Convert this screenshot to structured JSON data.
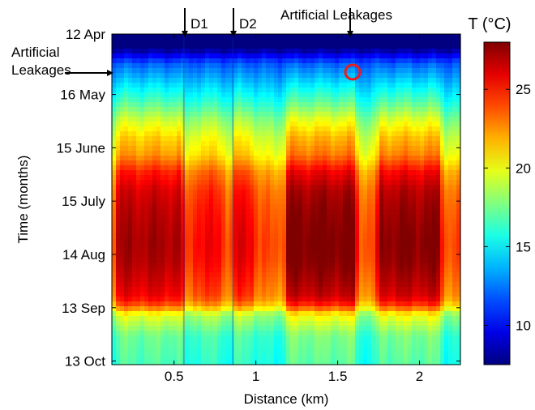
{
  "chart_data": {
    "type": "heatmap",
    "title": "",
    "xlabel": "Distance (km)",
    "ylabel": "Time (months)",
    "xlim": [
      0.12,
      2.25
    ],
    "xticks": [
      0.5,
      1,
      1.5,
      2
    ],
    "xtick_labels": [
      "0.5",
      "1",
      "1.5",
      "2"
    ],
    "yticks": [
      {
        "day": 0,
        "label": "12 Apr"
      },
      {
        "day": 34,
        "label": "16 May"
      },
      {
        "day": 64,
        "label": "15 June"
      },
      {
        "day": 94,
        "label": "15 July"
      },
      {
        "day": 124,
        "label": "14 Aug"
      },
      {
        "day": 154,
        "label": "13 Sep"
      },
      {
        "day": 184,
        "label": "13 Oct"
      }
    ],
    "ylim_days": [
      0,
      186
    ],
    "colorbar": {
      "label": "T (°C)",
      "range": [
        7.5,
        28
      ],
      "ticks": [
        10,
        15,
        20,
        25
      ],
      "tick_labels": [
        "10",
        "15",
        "20",
        "25"
      ]
    },
    "colormap": "jet",
    "grid": false,
    "annotations": [
      {
        "text": "D1",
        "x": 0.56
      },
      {
        "text": "D2",
        "x": 0.86
      },
      {
        "text": "Artificial Leakages",
        "x": 1.58
      },
      {
        "text": "Artificial Leakages",
        "day": 25
      },
      {
        "text": "",
        "type": "circle",
        "x": 1.59,
        "day": 26,
        "color": "#ee1b1b"
      }
    ],
    "temperature_profile": {
      "day": [
        0,
        8,
        18,
        28,
        38,
        48,
        58,
        68,
        78,
        88,
        98,
        108,
        118,
        128,
        138,
        148,
        153,
        158,
        170,
        186
      ],
      "temp_c": [
        9.5,
        11,
        14,
        15.8,
        17.5,
        19.5,
        21,
        22,
        24,
        25,
        25.5,
        25.8,
        26,
        25.8,
        25.2,
        24.5,
        23,
        20,
        18,
        17.5
      ]
    },
    "warm_zones_km": [
      {
        "x0": 0.16,
        "x1": 0.54,
        "extra_c": 2.5
      },
      {
        "x0": 0.62,
        "x1": 0.79,
        "extra_c": 1.2
      },
      {
        "x0": 0.88,
        "x1": 0.98,
        "extra_c": 1.6
      },
      {
        "x0": 1.2,
        "x1": 1.6,
        "extra_c": 3.2
      },
      {
        "x0": 1.76,
        "x1": 2.12,
        "extra_c": 3.0
      }
    ]
  }
}
